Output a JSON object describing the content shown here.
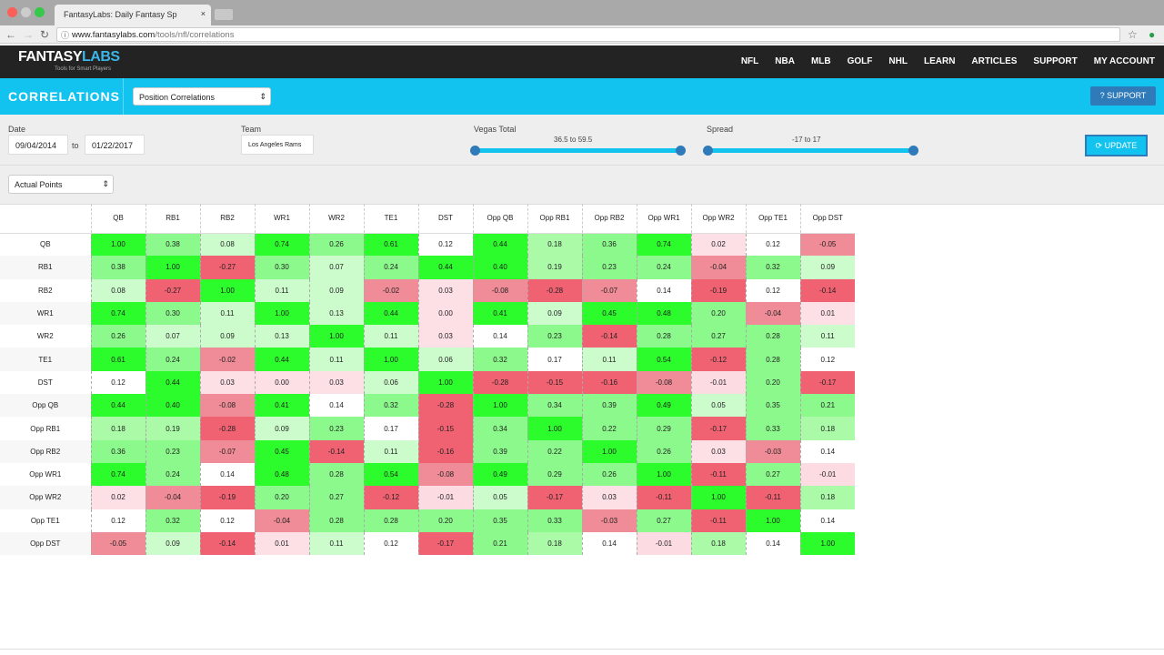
{
  "browser": {
    "tab_title": "FantasyLabs: Daily Fantasy Sp",
    "url_host": "www.fantasylabs.com",
    "url_path": "/tools/nfl/correlations"
  },
  "nav": {
    "logo": "FANTASYLABS",
    "logo_a": "FANTASY",
    "logo_b": "LABS",
    "tagline": "Tools for Smart Players",
    "links": [
      "NFL",
      "NBA",
      "MLB",
      "GOLF",
      "NHL",
      "LEARN",
      "ARTICLES",
      "SUPPORT",
      "MY ACCOUNT"
    ]
  },
  "header": {
    "title": "CORRELATIONS",
    "view_select": "Position Correlations",
    "support_button": "? SUPPORT"
  },
  "filters": {
    "date_label": "Date",
    "date_from": "09/04/2014",
    "date_to_label": "to",
    "date_to": "01/22/2017",
    "team_label": "Team",
    "team": "Los Angeles Rams",
    "vegas_label": "Vegas Total",
    "vegas_range": "36.5 to 59.5",
    "spread_label": "Spread",
    "spread_range": "-17 to 17",
    "update_button": "UPDATE",
    "metric_select": "Actual Points"
  },
  "colors": {
    "accent": "#13c3ef",
    "button": "#2f7ab8",
    "nav_bg": "#232323"
  },
  "matrix": {
    "positions": [
      "QB",
      "RB1",
      "RB2",
      "WR1",
      "WR2",
      "TE1",
      "DST",
      "Opp QB",
      "Opp RB1",
      "Opp RB2",
      "Opp WR1",
      "Opp WR2",
      "Opp TE1",
      "Opp DST"
    ],
    "values": [
      [
        "1.00",
        "0.38",
        "0.08",
        "0.74",
        "0.26",
        "0.61",
        "0.12",
        "0.44",
        "0.18",
        "0.36",
        "0.74",
        "0.02",
        "0.12",
        "-0.05"
      ],
      [
        "0.38",
        "1.00",
        "-0.27",
        "0.30",
        "0.07",
        "0.24",
        "0.44",
        "0.40",
        "0.19",
        "0.23",
        "0.24",
        "-0.04",
        "0.32",
        "0.09"
      ],
      [
        "0.08",
        "-0.27",
        "1.00",
        "0.11",
        "0.09",
        "-0.02",
        "0.03",
        "-0.08",
        "-0.28",
        "-0.07",
        "0.14",
        "-0.19",
        "0.12",
        "-0.14"
      ],
      [
        "0.74",
        "0.30",
        "0.11",
        "1.00",
        "0.13",
        "0.44",
        "0.00",
        "0.41",
        "0.09",
        "0.45",
        "0.48",
        "0.20",
        "-0.04",
        "0.01"
      ],
      [
        "0.26",
        "0.07",
        "0.09",
        "0.13",
        "1.00",
        "0.11",
        "0.03",
        "0.14",
        "0.23",
        "-0.14",
        "0.28",
        "0.27",
        "0.28",
        "0.11"
      ],
      [
        "0.61",
        "0.24",
        "-0.02",
        "0.44",
        "0.11",
        "1.00",
        "0.06",
        "0.32",
        "0.17",
        "0.11",
        "0.54",
        "-0.12",
        "0.28",
        "0.12"
      ],
      [
        "0.12",
        "0.44",
        "0.03",
        "0.00",
        "0.03",
        "0.06",
        "1.00",
        "-0.28",
        "-0.15",
        "-0.16",
        "-0.08",
        "-0.01",
        "0.20",
        "-0.17"
      ],
      [
        "0.44",
        "0.40",
        "-0.08",
        "0.41",
        "0.14",
        "0.32",
        "-0.28",
        "1.00",
        "0.34",
        "0.39",
        "0.49",
        "0.05",
        "0.35",
        "0.21"
      ],
      [
        "0.18",
        "0.19",
        "-0.28",
        "0.09",
        "0.23",
        "0.17",
        "-0.15",
        "0.34",
        "1.00",
        "0.22",
        "0.29",
        "-0.17",
        "0.33",
        "0.18"
      ],
      [
        "0.36",
        "0.23",
        "-0.07",
        "0.45",
        "-0.14",
        "0.11",
        "-0.16",
        "0.39",
        "0.22",
        "1.00",
        "0.26",
        "0.03",
        "-0.03",
        "0.14"
      ],
      [
        "0.74",
        "0.24",
        "0.14",
        "0.48",
        "0.28",
        "0.54",
        "-0.08",
        "0.49",
        "0.29",
        "0.26",
        "1.00",
        "-0.11",
        "0.27",
        "-0.01"
      ],
      [
        "0.02",
        "-0.04",
        "-0.19",
        "0.20",
        "0.27",
        "-0.12",
        "-0.01",
        "0.05",
        "-0.17",
        "0.03",
        "-0.11",
        "1.00",
        "-0.11",
        "0.18"
      ],
      [
        "0.12",
        "0.32",
        "0.12",
        "-0.04",
        "0.28",
        "0.28",
        "0.20",
        "0.35",
        "0.33",
        "-0.03",
        "0.27",
        "-0.11",
        "1.00",
        "0.14"
      ],
      [
        "-0.05",
        "0.09",
        "-0.14",
        "0.01",
        "0.11",
        "0.12",
        "-0.17",
        "0.21",
        "0.18",
        "0.14",
        "-0.01",
        "0.18",
        "0.14",
        "1.00"
      ]
    ]
  }
}
